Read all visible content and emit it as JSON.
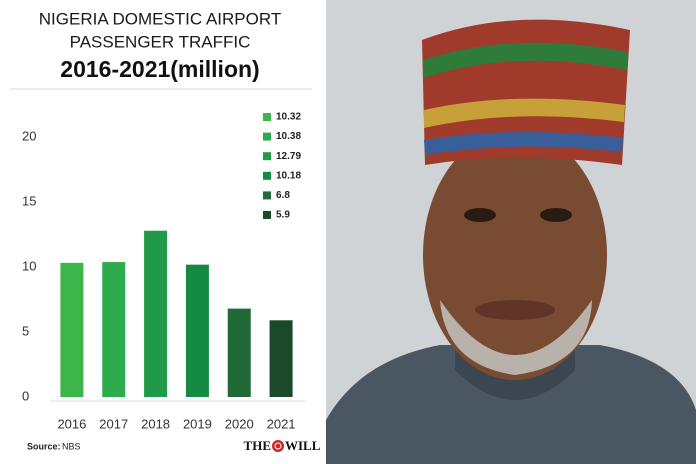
{
  "chart_data": {
    "type": "bar",
    "title": [
      "NIGERIA DOMESTIC AIRPORT",
      "PASSENGER TRAFFIC",
      "2016-2021(million)"
    ],
    "categories": [
      "2016",
      "2017",
      "2018",
      "2019",
      "2020",
      "2021"
    ],
    "values": [
      10.32,
      10.38,
      12.79,
      10.18,
      6.8,
      5.9
    ],
    "colors": [
      "#3cb54a",
      "#2eac4d",
      "#1f9a49",
      "#148a45",
      "#1f6a37",
      "#1b4a2b"
    ],
    "ylim": [
      0,
      20
    ],
    "yticks": [
      0,
      5,
      10,
      15,
      20
    ],
    "grid": false,
    "source_label": "Source:",
    "source": "NBS",
    "logo": [
      "THE",
      "WILL"
    ]
  }
}
